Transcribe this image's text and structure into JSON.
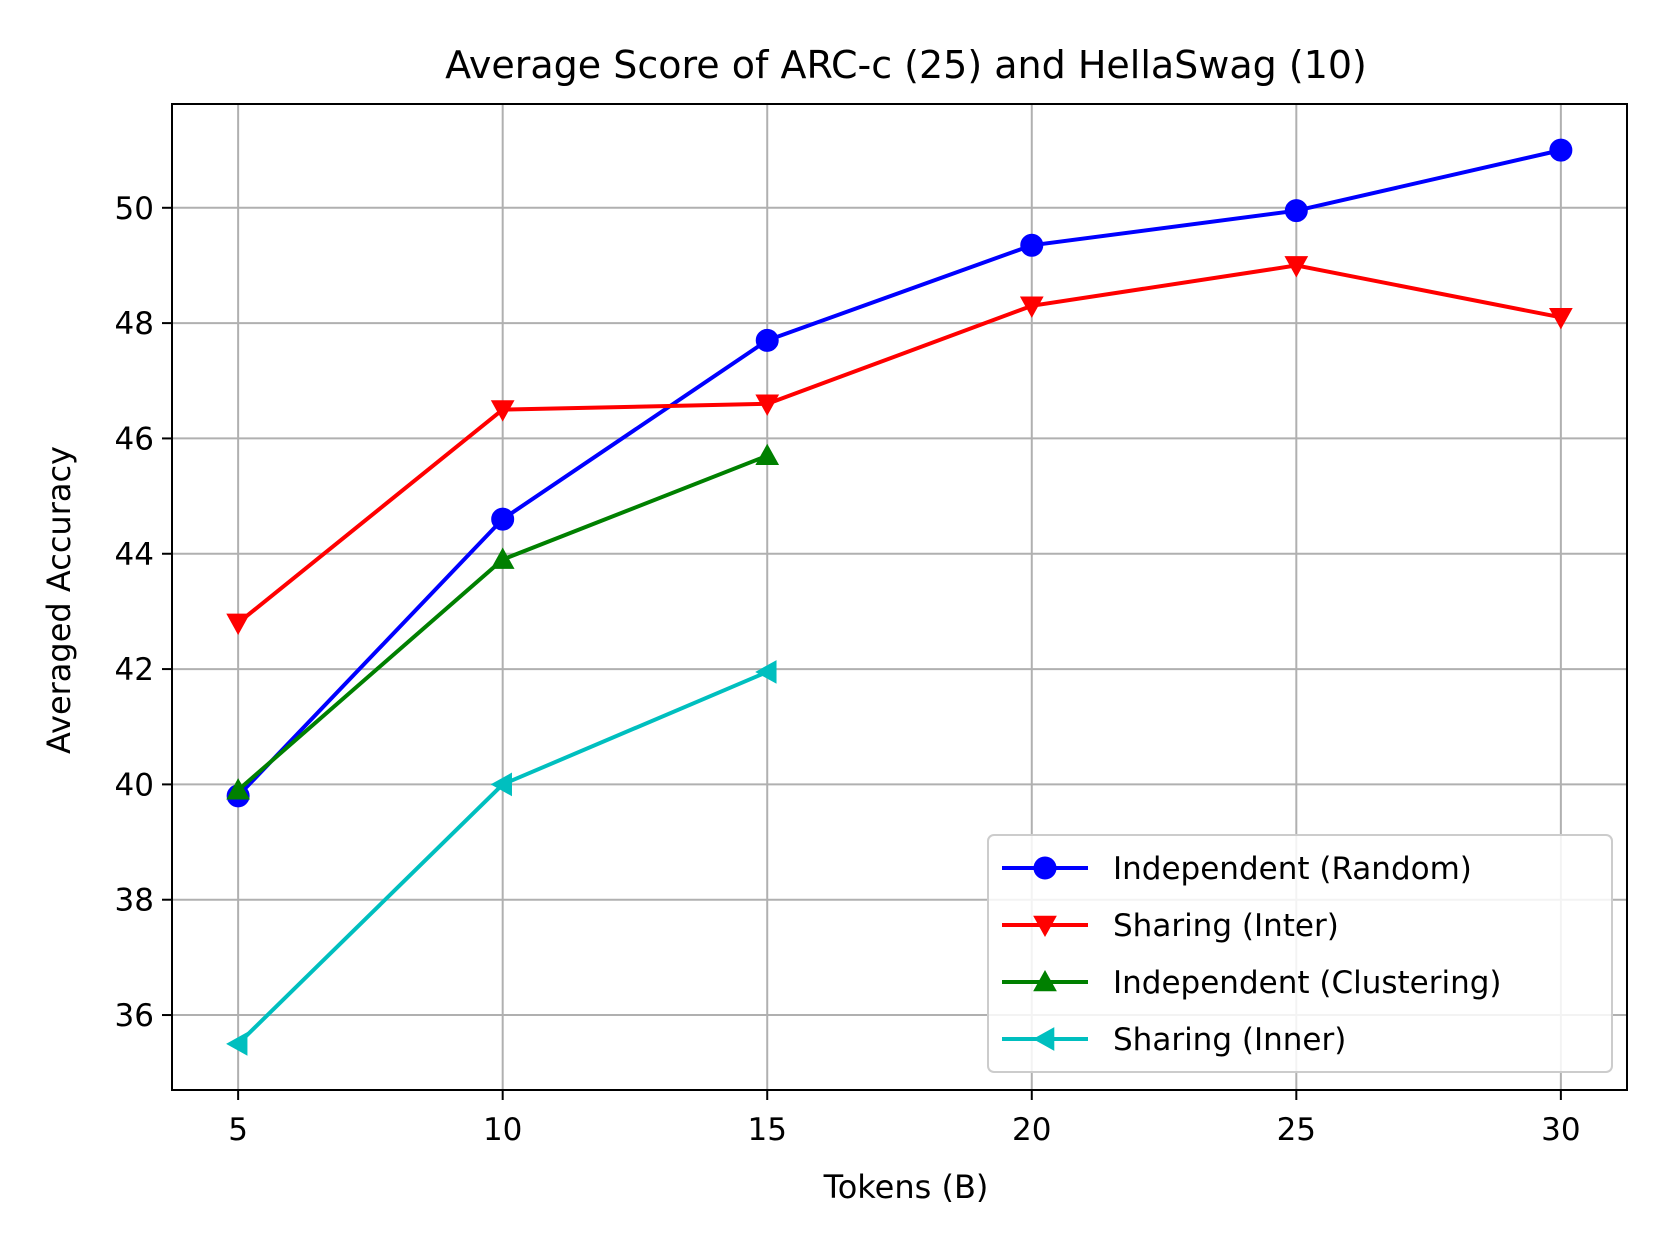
{
  "chart_data": {
    "type": "line",
    "title": "Average Score of ARC-c (25) and HellaSwag (10)",
    "xlabel": "Tokens (B)",
    "ylabel": "Averaged Accuracy",
    "xlim": [
      3.75,
      31.25
    ],
    "ylim": [
      34.7,
      51.8
    ],
    "xticks": [
      5,
      10,
      15,
      20,
      25,
      30
    ],
    "yticks": [
      36,
      38,
      40,
      42,
      44,
      46,
      48,
      50
    ],
    "grid": true,
    "legend_position": "lower-right",
    "series": [
      {
        "name": "Independent (Random)",
        "color": "#0000ff",
        "marker": "circle",
        "x": [
          5,
          10,
          15,
          20,
          25,
          30
        ],
        "values": [
          39.8,
          44.6,
          47.7,
          49.35,
          49.95,
          51.0
        ]
      },
      {
        "name": "Sharing (Inter)",
        "color": "#ff0000",
        "marker": "triangle-down",
        "x": [
          5,
          10,
          15,
          20,
          25,
          30
        ],
        "values": [
          42.8,
          46.5,
          46.6,
          48.3,
          49.0,
          48.1
        ]
      },
      {
        "name": "Independent (Clustering)",
        "color": "#008000",
        "marker": "triangle-up",
        "x": [
          5,
          10,
          15
        ],
        "values": [
          39.9,
          43.9,
          45.7
        ]
      },
      {
        "name": "Sharing (Inner)",
        "color": "#00bfbf",
        "marker": "triangle-left",
        "x": [
          5,
          10,
          15
        ],
        "values": [
          35.5,
          40.0,
          41.95
        ]
      }
    ]
  }
}
